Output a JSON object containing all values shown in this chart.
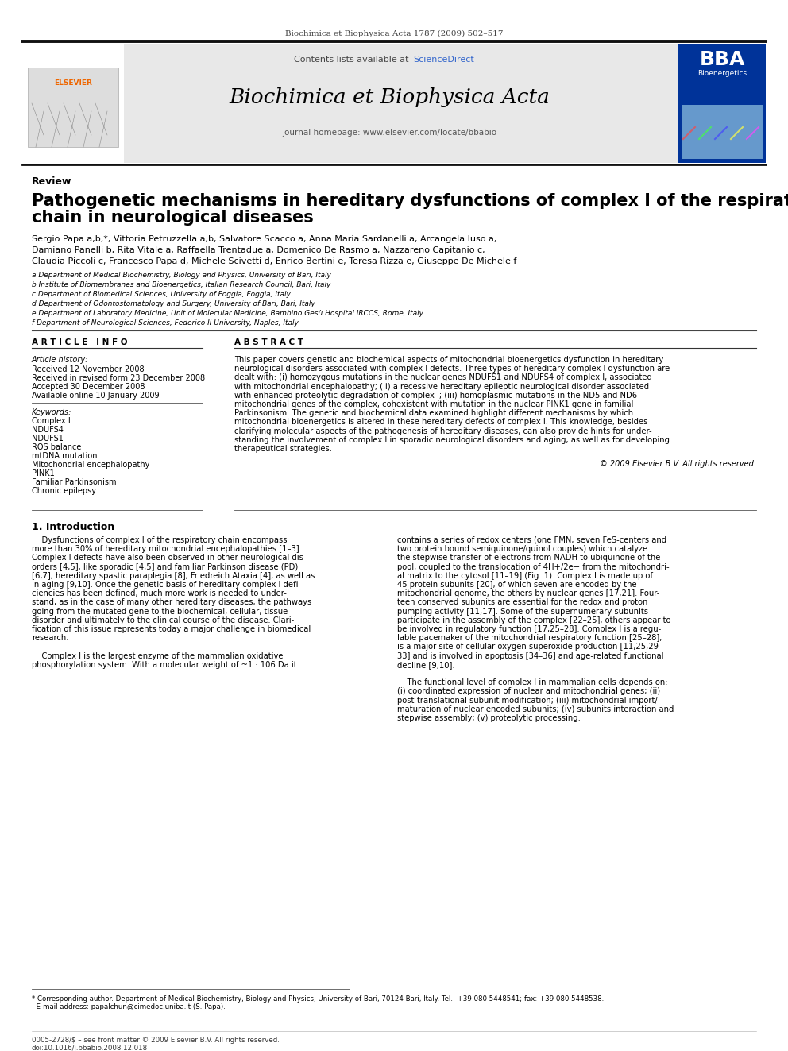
{
  "page_title": "Biochimica et Biophysica Acta 1787 (2009) 502–517",
  "journal_name": "Biochimica et Biophysica Acta",
  "journal_homepage": "journal homepage: www.elsevier.com/locate/bbabio",
  "contents_line": "Contents lists available at ",
  "sciencedirect": "ScienceDirect",
  "article_type": "Review",
  "paper_title_line1": "Pathogenetic mechanisms in hereditary dysfunctions of complex I of the respiratory",
  "paper_title_line2": "chain in neurological diseases",
  "authors_line1": "Sergio Papa a,b,*, Vittoria Petruzzella a,b, Salvatore Scacco a, Anna Maria Sardanelli a, Arcangela Iuso a,",
  "authors_line2": "Damiano Panelli b, Rita Vitale a, Raffaella Trentadue a, Domenico De Rasmo a, Nazzareno Capitanio c,",
  "authors_line3": "Claudia Piccoli c, Francesco Papa d, Michele Scivetti d, Enrico Bertini e, Teresa Rizza e, Giuseppe De Michele f",
  "affiliations": [
    "a Department of Medical Biochemistry, Biology and Physics, University of Bari, Italy",
    "b Institute of Biomembranes and Bioenergetics, Italian Research Council, Bari, Italy",
    "c Department of Biomedical Sciences, University of Foggia, Foggia, Italy",
    "d Department of Odontostomatology and Surgery, University of Bari, Bari, Italy",
    "e Department of Laboratory Medicine, Unit of Molecular Medicine, Bambino Gesù Hospital IRCCS, Rome, Italy",
    "f Department of Neurological Sciences, Federico II University, Naples, Italy"
  ],
  "article_info_header": "A R T I C L E   I N F O",
  "abstract_header": "A B S T R A C T",
  "article_history_label": "Article history:",
  "received1": "Received 12 November 2008",
  "received2": "Received in revised form 23 December 2008",
  "accepted": "Accepted 30 December 2008",
  "available": "Available online 10 January 2009",
  "keywords_label": "Keywords:",
  "keywords": [
    "Complex I",
    "NDUFS4",
    "NDUFS1",
    "ROS balance",
    "mtDNA mutation",
    "Mitochondrial encephalopathy",
    "PINK1",
    "Familiar Parkinsonism",
    "Chronic epilepsy"
  ],
  "copyright": "© 2009 Elsevier B.V. All rights reserved.",
  "intro_header": "1. Introduction",
  "abstract_lines": [
    "This paper covers genetic and biochemical aspects of mitochondrial bioenergetics dysfunction in hereditary",
    "neurological disorders associated with complex I defects. Three types of hereditary complex I dysfunction are",
    "dealt with: (i) homozygous mutations in the nuclear genes NDUFS1 and NDUFS4 of complex I, associated",
    "with mitochondrial encephalopathy; (ii) a recessive hereditary epileptic neurological disorder associated",
    "with enhanced proteolytic degradation of complex I; (iii) homoplasmic mutations in the ND5 and ND6",
    "mitochondrial genes of the complex, cohexistent with mutation in the nuclear PINK1 gene in familial",
    "Parkinsonism. The genetic and biochemical data examined highlight different mechanisms by which",
    "mitochondrial bioenergetics is altered in these hereditary defects of complex I. This knowledge, besides",
    "clarifying molecular aspects of the pathogenesis of hereditary diseases, can also provide hints for under-",
    "standing the involvement of complex I in sporadic neurological disorders and aging, as well as for developing",
    "therapeutical strategies."
  ],
  "intro_col1_lines": [
    "    Dysfunctions of complex I of the respiratory chain encompass",
    "more than 30% of hereditary mitochondrial encephalopathies [1–3].",
    "Complex I defects have also been observed in other neurological dis-",
    "orders [4,5], like sporadic [4,5] and familiar Parkinson disease (PD)",
    "[6,7], hereditary spastic paraplegia [8], Friedreich Ataxia [4], as well as",
    "in aging [9,10]. Once the genetic basis of hereditary complex I defi-",
    "ciencies has been defined, much more work is needed to under-",
    "stand, as in the case of many other hereditary diseases, the pathways",
    "going from the mutated gene to the biochemical, cellular, tissue",
    "disorder and ultimately to the clinical course of the disease. Clari-",
    "fication of this issue represents today a major challenge in biomedical",
    "research.",
    "",
    "    Complex I is the largest enzyme of the mammalian oxidative",
    "phosphorylation system. With a molecular weight of ~1 · 106 Da it"
  ],
  "intro_col2_lines": [
    "contains a series of redox centers (one FMN, seven FeS-centers and",
    "two protein bound semiquinone/quinol couples) which catalyze",
    "the stepwise transfer of electrons from NADH to ubiquinone of the",
    "pool, coupled to the translocation of 4H+/2e− from the mitochondri-",
    "al matrix to the cytosol [11–19] (Fig. 1). Complex I is made up of",
    "45 protein subunits [20], of which seven are encoded by the",
    "mitochondrial genome, the others by nuclear genes [17,21]. Four-",
    "teen conserved subunits are essential for the redox and proton",
    "pumping activity [11,17]. Some of the supernumerary subunits",
    "participate in the assembly of the complex [22–25], others appear to",
    "be involved in regulatory function [17,25–28]. Complex I is a regu-",
    "lable pacemaker of the mitochondrial respiratory function [25–28],",
    "is a major site of cellular oxygen superoxide production [11,25,29–",
    "33] and is involved in apoptosis [34–36] and age-related functional",
    "decline [9,10].",
    "",
    "    The functional level of complex I in mammalian cells depends on:",
    "(i) coordinated expression of nuclear and mitochondrial genes; (ii)",
    "post-translational subunit modification; (iii) mitochondrial import/",
    "maturation of nuclear encoded subunits; (iv) subunits interaction and",
    "stepwise assembly; (v) proteolytic processing."
  ],
  "footnote_line1": "* Corresponding author. Department of Medical Biochemistry, Biology and Physics, University of Bari, 70124 Bari, Italy. Tel.: +39 080 5448541; fax: +39 080 5448538.",
  "footnote_line2": "  E-mail address: papalchun@cimedoc.uniba.it (S. Papa).",
  "bottom_line1": "0005-2728/$ – see front matter © 2009 Elsevier B.V. All rights reserved.",
  "bottom_line2": "doi:10.1016/j.bbabio.2008.12.018",
  "bg_color": "#ffffff",
  "header_bg": "#e8e8e8",
  "blue_color": "#3366cc",
  "text_color": "#000000"
}
